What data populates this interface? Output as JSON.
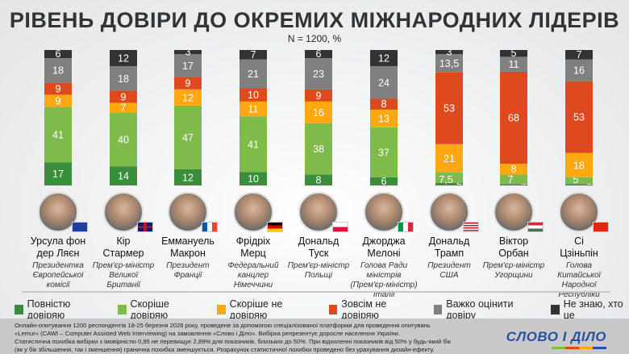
{
  "colors": {
    "full_trust": "#388e3c",
    "rather_trust": "#7fbb4a",
    "rather_not": "#ffa811",
    "not_at_all": "#de4a1e",
    "hard_to_say": "#808080",
    "dont_know": "#333333"
  },
  "chart_data": {
    "type": "bar",
    "stacked": true,
    "title": "РІВЕНЬ ДОВІРИ ДО ОКРЕМИХ МІЖНАРОДНИХ ЛІДЕРІВ",
    "subtitle": "N = 1200, %",
    "ylim": [
      0,
      100
    ],
    "grid": false,
    "legend_position": "bottom",
    "categories": [
      "Урсула фон дер Ляєн",
      "Кір Стармер",
      "Еммануель Макрон",
      "Фрідріх Мерц",
      "Дональд Туск",
      "Джорджа Мелоні",
      "Дональд Трамп",
      "Віктор Орбан",
      "Сі Цзіньпін"
    ],
    "series": [
      {
        "name": "Повністю довіряю",
        "key": "full_trust",
        "values": [
          17,
          14,
          12,
          10,
          8,
          6,
          2,
          1,
          1
        ]
      },
      {
        "name": "Скоріше довіряю",
        "key": "rather_trust",
        "values": [
          41,
          40,
          47,
          41,
          38,
          37,
          7.5,
          7,
          5
        ]
      },
      {
        "name": "Скоріше не довіряю",
        "key": "rather_not",
        "values": [
          9,
          7,
          12,
          11,
          16,
          13,
          21,
          8,
          18
        ]
      },
      {
        "name": "Зовсім не довіряю",
        "key": "not_at_all",
        "values": [
          9,
          9,
          9,
          10,
          9,
          8,
          53,
          68,
          53
        ]
      },
      {
        "name": "Важко оцінити довіру",
        "key": "hard_to_say",
        "values": [
          18,
          18,
          17,
          21,
          23,
          24,
          13.5,
          11,
          16
        ]
      },
      {
        "name": "Не знаю, хто це",
        "key": "dont_know",
        "values": [
          6,
          12,
          3,
          7,
          6,
          12,
          3,
          5,
          7
        ]
      }
    ]
  },
  "people": [
    {
      "name1": "Урсула фон",
      "name2": "дер Ляєн",
      "role": [
        "Президентка",
        "Європейської",
        "комісії"
      ],
      "flag": "eu"
    },
    {
      "name1": "Кір",
      "name2": "Стармер",
      "role": [
        "Прем'єр-міністр",
        "Великої",
        "Британії"
      ],
      "flag": "uk"
    },
    {
      "name1": "Еммануель",
      "name2": "Макрон",
      "role": [
        "Президент",
        "Франції"
      ],
      "flag": "fr"
    },
    {
      "name1": "Фрідріх",
      "name2": "Мерц",
      "role": [
        "Федеральний",
        "канцлер",
        "Німеччини"
      ],
      "flag": "de"
    },
    {
      "name1": "Дональд",
      "name2": "Туск",
      "role": [
        "Прем'єр-міністр",
        "Польщі"
      ],
      "flag": "pl"
    },
    {
      "name1": "Джорджа",
      "name2": "Мелоні",
      "role": [
        "Голова Ради",
        "міністрів",
        "(Прем'єр-міністр) Італії"
      ],
      "flag": "it"
    },
    {
      "name1": "Дональд",
      "name2": "Трамп",
      "role": [
        "Президент",
        "США"
      ],
      "flag": "us"
    },
    {
      "name1": "Віктор",
      "name2": "Орбан",
      "role": [
        "Прем'єр-міністр",
        "Угорщини"
      ],
      "flag": "hu"
    },
    {
      "name1": "Сі",
      "name2": "Цзіньпін",
      "role": [
        "Голова",
        "Китайської",
        "Народної Республіки"
      ],
      "flag": "cn"
    }
  ],
  "footer": {
    "lines": [
      "Онлайн-опитування 1200 респондентів 18-25 березня 2026 року, проведене за допомогою спеціалізованої платформи для проведення опитувань",
      "«Lemur» (CAWI – Computer Assisted Web Interviewing) на замовлення «Слово і Діло». Вибірка репрезентує доросле населення України.",
      "Статистична похибка вибірки з імовірністю 0,95 не перевищує 2,89% для показників, близьких до 50%. При відхиленні показників від 50% у будь-який бік",
      "(як у бік збільшення, так і зменшення) гранична похибка зменшується. Розрахунок статистичної похибки проведено без урахування дизайн-ефекту."
    ],
    "logo": "СЛОВО І ДІЛО"
  }
}
